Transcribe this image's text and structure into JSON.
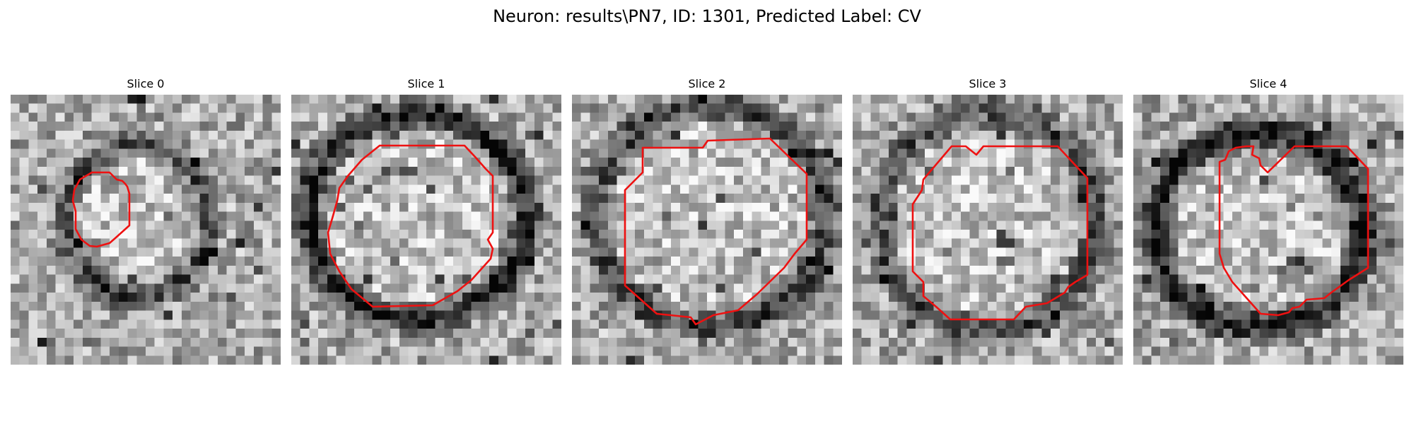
{
  "figure": {
    "title": "Neuron: results\\PN7, ID: 1301, Predicted Label: CV"
  },
  "colors": {
    "contour": "#ee1111",
    "colormap": "grayscale"
  },
  "panels": [
    {
      "title": "Slice 0"
    },
    {
      "title": "Slice 1"
    },
    {
      "title": "Slice 2"
    },
    {
      "title": "Slice 3"
    },
    {
      "title": "Slice 4"
    }
  ]
}
